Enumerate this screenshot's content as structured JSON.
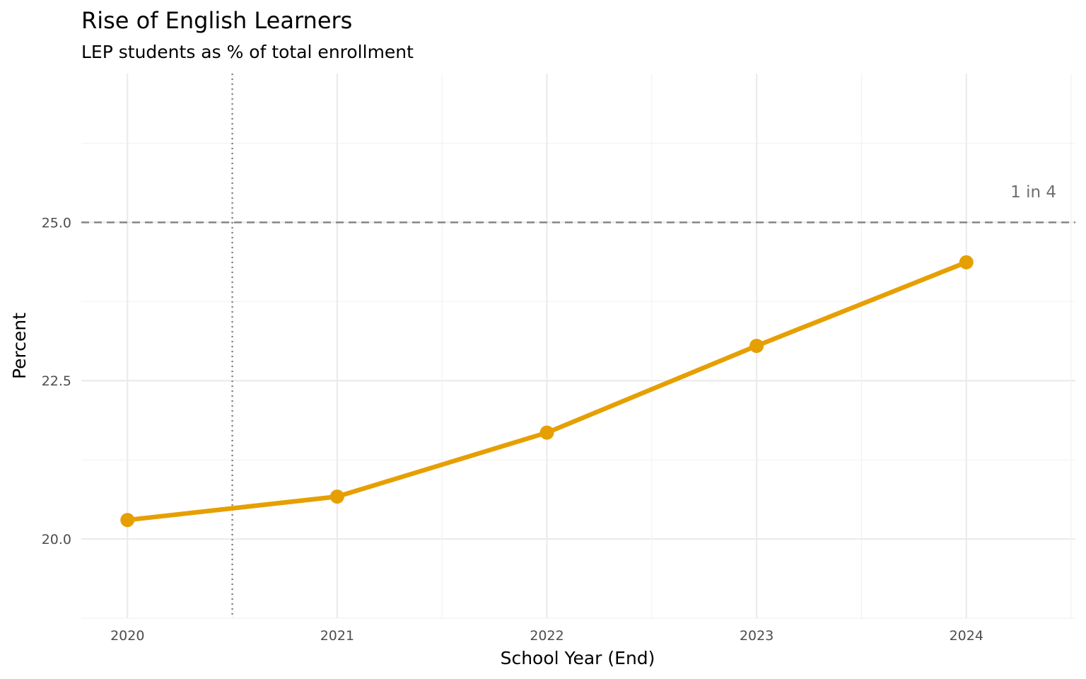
{
  "chart_data": {
    "type": "line",
    "title": "Rise of English Learners",
    "subtitle": "LEP students as % of total enrollment",
    "xlabel": "School Year (End)",
    "ylabel": "Percent",
    "x": [
      2020,
      2021,
      2022,
      2023,
      2024
    ],
    "series": [
      {
        "values": [
          20.3,
          20.67,
          21.68,
          23.05,
          24.37
        ],
        "color": "#E69F00"
      }
    ],
    "xlim": [
      2019.78,
      2024.52
    ],
    "ylim": [
      18.75,
      27.35
    ],
    "x_ticks": [
      "2020",
      "2021",
      "2022",
      "2023",
      "2024"
    ],
    "y_ticks": [
      "20.0",
      "22.5",
      "25.0"
    ],
    "grid": true,
    "reference_lines": [
      {
        "orientation": "horizontal",
        "value": 25.0,
        "style": "dashed",
        "label": "1 in 4",
        "color": "#808080"
      },
      {
        "orientation": "vertical",
        "value": 2020.5,
        "style": "dotted",
        "color": "#808080"
      }
    ],
    "legend": "none"
  }
}
